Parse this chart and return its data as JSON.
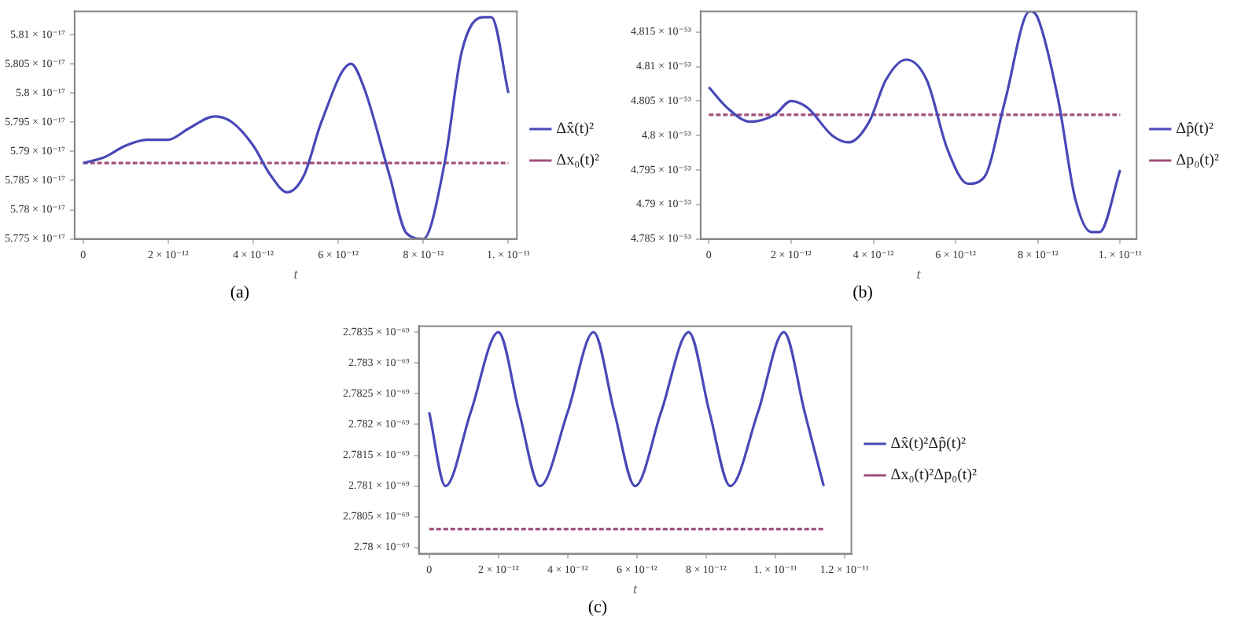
{
  "chart_data": [
    {
      "type": "line",
      "xlabel": "t",
      "annotations": [
        "(a)"
      ],
      "legend": "right",
      "grid": false,
      "marker": "none",
      "xlim": [
        -2e-13,
        1.02e-11
      ],
      "xticks": [
        {
          "value": 0,
          "label": "0"
        },
        {
          "value": 2e-12,
          "label": "2 × 10⁻¹²"
        },
        {
          "value": 4e-12,
          "label": "4 × 10⁻¹²"
        },
        {
          "value": 6e-12,
          "label": "6 × 10⁻¹²"
        },
        {
          "value": 8e-12,
          "label": "8 × 10⁻¹²"
        },
        {
          "value": 1e-11,
          "label": "1. × 10⁻¹¹"
        }
      ],
      "ylim": [
        5.775e-17,
        5.814e-17
      ],
      "yticks": [
        {
          "value": 5.775e-17,
          "label": "5.775 × 10⁻¹⁷"
        },
        {
          "value": 5.78e-17,
          "label": "5.78 × 10⁻¹⁷"
        },
        {
          "value": 5.785e-17,
          "label": "5.785 × 10⁻¹⁷"
        },
        {
          "value": 5.79e-17,
          "label": "5.79 × 10⁻¹⁷"
        },
        {
          "value": 5.795e-17,
          "label": "5.795 × 10⁻¹⁷"
        },
        {
          "value": 5.8e-17,
          "label": "5.8 × 10⁻¹⁷"
        },
        {
          "value": 5.805e-17,
          "label": "5.805 × 10⁻¹⁷"
        },
        {
          "value": 5.81e-17,
          "label": "5.81 × 10⁻¹⁷"
        }
      ],
      "series": [
        {
          "name": "Δx̂(t)²",
          "color": "#4848b8",
          "line_style": "solid",
          "x": [
            0,
            5e-13,
            1e-12,
            1.5e-12,
            2e-12,
            2.5e-12,
            3.1e-12,
            3.5e-12,
            4e-12,
            4.4e-12,
            4.8e-12,
            5.2e-12,
            5.6e-12,
            6.3e-12,
            6.6e-12,
            7.2e-12,
            7.6e-12,
            8e-12,
            8.5e-12,
            8.9e-12,
            9.4e-12,
            9.6e-12,
            1e-11
          ],
          "values": [
            5.788e-17,
            5.789e-17,
            5.791e-17,
            5.792e-17,
            5.792e-17,
            5.794e-17,
            5.796e-17,
            5.795e-17,
            5.791e-17,
            5.786e-17,
            5.783e-17,
            5.786e-17,
            5.795e-17,
            5.805e-17,
            5.801e-17,
            5.786e-17,
            5.776e-17,
            5.775e-17,
            5.788e-17,
            5.807e-17,
            5.813e-17,
            5.813e-17,
            5.8e-17
          ]
        },
        {
          "name": "Δx₀(t)²",
          "color": "#a0507a",
          "line_style": "dashed",
          "x": [
            0,
            1e-11
          ],
          "values": [
            5.788e-17,
            5.788e-17
          ]
        }
      ]
    },
    {
      "type": "line",
      "xlabel": "t",
      "annotations": [
        "(b)"
      ],
      "legend": "right",
      "grid": false,
      "marker": "none",
      "xlim": [
        -2e-13,
        1.04e-11
      ],
      "xticks": [
        {
          "value": 0,
          "label": "0"
        },
        {
          "value": 2e-12,
          "label": "2 × 10⁻¹²"
        },
        {
          "value": 4e-12,
          "label": "4 × 10⁻¹²"
        },
        {
          "value": 6e-12,
          "label": "6 × 10⁻¹²"
        },
        {
          "value": 8e-12,
          "label": "8 × 10⁻¹²"
        },
        {
          "value": 1e-11,
          "label": "1. × 10⁻¹¹"
        }
      ],
      "ylim": [
        4.785e-53,
        4.818e-53
      ],
      "yticks": [
        {
          "value": 4.785e-53,
          "label": "4.785 × 10⁻⁵³"
        },
        {
          "value": 4.79e-53,
          "label": "4.79 × 10⁻⁵³"
        },
        {
          "value": 4.795e-53,
          "label": "4.795 × 10⁻⁵³"
        },
        {
          "value": 4.8e-53,
          "label": "4.8 × 10⁻⁵³"
        },
        {
          "value": 4.805e-53,
          "label": "4.805 × 10⁻⁵³"
        },
        {
          "value": 4.81e-53,
          "label": "4.81 × 10⁻⁵³"
        },
        {
          "value": 4.815e-53,
          "label": "4.815 × 10⁻⁵³"
        }
      ],
      "series": [
        {
          "name": "Δp̂(t)²",
          "color": "#4848b8",
          "line_style": "solid",
          "x": [
            0,
            4.5e-13,
            1e-12,
            1.6e-12,
            2e-12,
            2.4e-12,
            3e-12,
            3.4e-12,
            3.9e-12,
            4.3e-12,
            4.8e-12,
            5.3e-12,
            5.8e-12,
            6.3e-12,
            6.7e-12,
            7.2e-12,
            7.8e-12,
            8e-12,
            8.5e-12,
            8.9e-12,
            9.3e-12,
            9.5e-12,
            1e-11
          ],
          "values": [
            4.807e-53,
            4.804e-53,
            4.802e-53,
            4.803e-53,
            4.805e-53,
            4.804e-53,
            4.8e-53,
            4.799e-53,
            4.802e-53,
            4.808e-53,
            4.811e-53,
            4.808e-53,
            4.798e-53,
            4.793e-53,
            4.794e-53,
            4.805e-53,
            4.818e-53,
            4.817e-53,
            4.805e-53,
            4.791e-53,
            4.786e-53,
            4.786e-53,
            4.795e-53
          ]
        },
        {
          "name": "Δp₀(t)²",
          "color": "#a0507a",
          "line_style": "dashed",
          "x": [
            0,
            1e-11
          ],
          "values": [
            4.803e-53,
            4.803e-53
          ]
        }
      ]
    },
    {
      "type": "line",
      "xlabel": "t",
      "annotations": [
        "(c)"
      ],
      "legend": "right",
      "grid": false,
      "marker": "none",
      "xlim": [
        -3e-13,
        1.22e-11
      ],
      "xticks": [
        {
          "value": 0,
          "label": "0"
        },
        {
          "value": 2e-12,
          "label": "2 × 10⁻¹²"
        },
        {
          "value": 4e-12,
          "label": "4 × 10⁻¹²"
        },
        {
          "value": 6e-12,
          "label": "6 × 10⁻¹²"
        },
        {
          "value": 8e-12,
          "label": "8 × 10⁻¹²"
        },
        {
          "value": 1e-11,
          "label": "1. × 10⁻¹¹"
        },
        {
          "value": 1.2e-11,
          "label": "1.2 × 10⁻¹¹"
        }
      ],
      "ylim": [
        2.7799e-69,
        2.7836e-69
      ],
      "yticks": [
        {
          "value": 2.78e-69,
          "label": "2.78 × 10⁻⁶⁹"
        },
        {
          "value": 2.7805e-69,
          "label": "2.7805 × 10⁻⁶⁹"
        },
        {
          "value": 2.781e-69,
          "label": "2.781 × 10⁻⁶⁹"
        },
        {
          "value": 2.7815e-69,
          "label": "2.7815 × 10⁻⁶⁹"
        },
        {
          "value": 2.782e-69,
          "label": "2.782 × 10⁻⁶⁹"
        },
        {
          "value": 2.7825e-69,
          "label": "2.7825 × 10⁻⁶⁹"
        },
        {
          "value": 2.783e-69,
          "label": "2.783 × 10⁻⁶⁹"
        },
        {
          "value": 2.7835e-69,
          "label": "2.7835 × 10⁻⁶⁹"
        }
      ],
      "series": [
        {
          "name": "Δx̂(t)²Δp̂(t)²",
          "color": "#4848b8",
          "line_style": "solid",
          "x": [
            0,
            4.7e-13,
            1.2e-12,
            2e-12,
            2.6e-12,
            3.2e-12,
            4e-12,
            4.75e-12,
            5.35e-12,
            5.95e-12,
            6.7e-12,
            7.5e-12,
            8.1e-12,
            8.7e-12,
            9.5e-12,
            1.025e-11,
            1.085e-11,
            1.14e-11
          ],
          "values": [
            2.7822e-69,
            2.781e-69,
            2.7822e-69,
            2.7835e-69,
            2.7822e-69,
            2.781e-69,
            2.7822e-69,
            2.7835e-69,
            2.7822e-69,
            2.781e-69,
            2.7822e-69,
            2.7835e-69,
            2.7822e-69,
            2.781e-69,
            2.7822e-69,
            2.7835e-69,
            2.7822e-69,
            2.781e-69
          ]
        },
        {
          "name": "Δx₀(t)²Δp₀(t)²",
          "color": "#a0507a",
          "line_style": "dashed",
          "x": [
            0,
            1.14e-11
          ],
          "values": [
            2.7803e-69,
            2.7803e-69
          ]
        }
      ]
    }
  ]
}
